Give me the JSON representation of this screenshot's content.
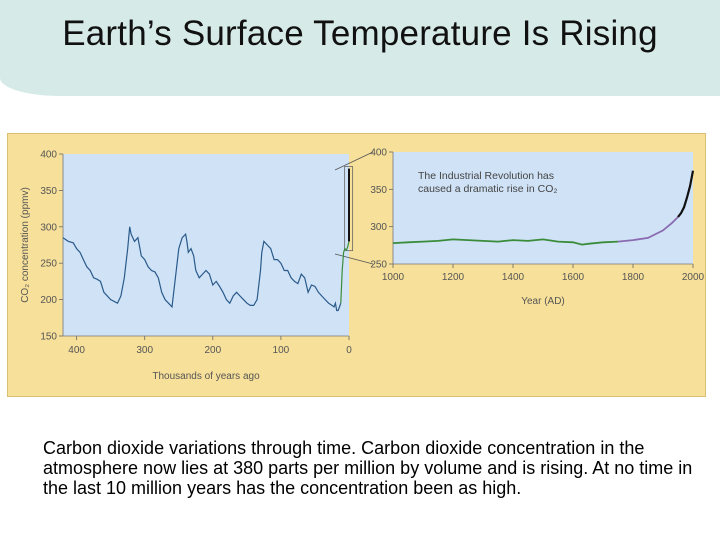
{
  "slide": {
    "title": "Earth’s Surface Temperature Is Rising",
    "caption": "Carbon dioxide variations through time. Carbon dioxide concentration in the atmosphere now lies at 380 parts per million by volume and is rising. At no time in the last 10 million years has the concentration been as high."
  },
  "colors": {
    "title_band": "#d6ebe7",
    "figure_bg": "#f7e09a",
    "plot_bg": "#cfe2f6",
    "series_ice": "#2a5a8a",
    "series_green": "#3a8c3a",
    "series_purple": "#8a6bb0",
    "series_black": "#111111"
  },
  "chart_data": [
    {
      "type": "line",
      "xlabel": "Thousands of years ago",
      "ylabel": "CO₂ concentration (ppmv)",
      "xlim": [
        420,
        0
      ],
      "ylim": [
        150,
        400
      ],
      "x_ticks": [
        "400",
        "300",
        "200",
        "100",
        "0"
      ],
      "y_ticks": [
        "400",
        "350",
        "300",
        "250",
        "200",
        "150"
      ],
      "series": [
        {
          "x": [
            420,
            412,
            405,
            400,
            395,
            390,
            385,
            380,
            375,
            370,
            365,
            360,
            350,
            340,
            335,
            330,
            325,
            322,
            320,
            315,
            310,
            305,
            300,
            295,
            290,
            285,
            280,
            275,
            270,
            265,
            260,
            255,
            250,
            245,
            240,
            238,
            236,
            232,
            228,
            225,
            220,
            215,
            210,
            205,
            200,
            195,
            190,
            185,
            180,
            175,
            170,
            165,
            160,
            155,
            150,
            145,
            140,
            135,
            130,
            128,
            125,
            120,
            115,
            110,
            105,
            100,
            95,
            90,
            85,
            80,
            75,
            70,
            65,
            60,
            55,
            50,
            45,
            40,
            35,
            30,
            25,
            22,
            20,
            18,
            16,
            14,
            12
          ],
          "y": [
            285,
            280,
            278,
            270,
            265,
            255,
            245,
            240,
            230,
            228,
            225,
            210,
            200,
            195,
            205,
            230,
            270,
            300,
            290,
            280,
            285,
            260,
            255,
            245,
            240,
            238,
            230,
            210,
            200,
            195,
            190,
            230,
            270,
            285,
            290,
            280,
            265,
            270,
            260,
            240,
            230,
            235,
            240,
            235,
            220,
            225,
            218,
            210,
            200,
            195,
            205,
            210,
            205,
            200,
            195,
            192,
            192,
            200,
            240,
            265,
            280,
            275,
            270,
            255,
            255,
            250,
            240,
            240,
            230,
            225,
            222,
            235,
            230,
            210,
            220,
            218,
            210,
            205,
            200,
            195,
            192,
            190,
            195,
            185,
            185,
            190,
            195
          ]
        },
        {
          "x": [
            12,
            10,
            8,
            6,
            4,
            2,
            0
          ],
          "y": [
            195,
            240,
            265,
            270,
            268,
            272,
            280
          ]
        },
        {
          "x": [
            0,
            0
          ],
          "y": [
            280,
            380
          ]
        }
      ]
    },
    {
      "type": "line",
      "title": "The Industrial Revolution has caused a dramatic rise in CO₂",
      "xlabel": "Year (AD)",
      "ylim": [
        250,
        400
      ],
      "xlim": [
        1000,
        2000
      ],
      "x_ticks": [
        "1000",
        "1200",
        "1400",
        "1600",
        "1800",
        "2000"
      ],
      "y_ticks": [
        "400",
        "350",
        "300",
        "250"
      ],
      "series": [
        {
          "x": [
            1000,
            1050,
            1100,
            1150,
            1200,
            1250,
            1300,
            1350,
            1400,
            1450,
            1500,
            1550,
            1600,
            1630,
            1650,
            1700,
            1750
          ],
          "y": [
            278,
            279,
            280,
            281,
            283,
            282,
            281,
            280,
            282,
            281,
            283,
            280,
            279,
            276,
            277,
            279,
            280
          ]
        },
        {
          "x": [
            1750,
            1800,
            1850,
            1900,
            1930,
            1950
          ],
          "y": [
            280,
            282,
            285,
            295,
            305,
            313
          ]
        },
        {
          "x": [
            1950,
            1960,
            1970,
            1980,
            1990,
            2000
          ],
          "y": [
            313,
            318,
            326,
            339,
            354,
            375
          ]
        }
      ]
    }
  ]
}
